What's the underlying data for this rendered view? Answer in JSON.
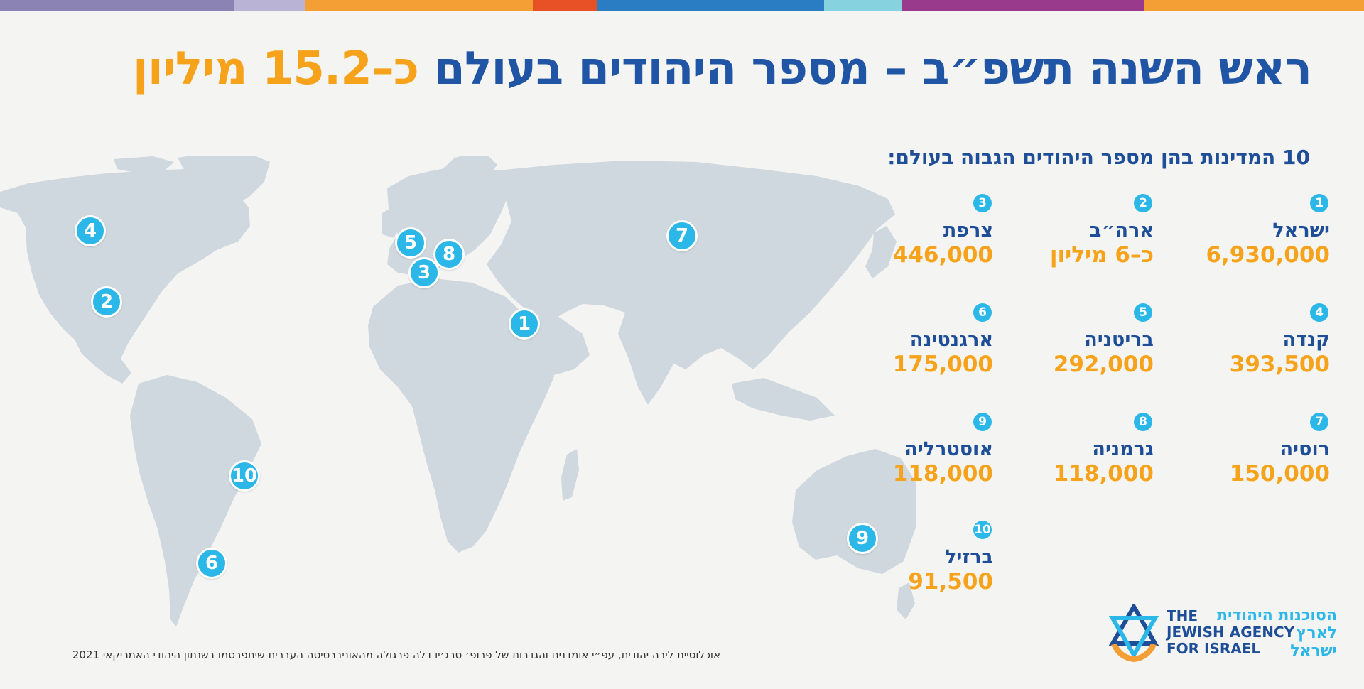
{
  "title": {
    "main": "ראש השנה תשפ״ב – מספר היהודים בעולם",
    "highlight": "כ–15.2 מיליון"
  },
  "subtitle": "10 המדינות בהן מספר היהודים הגבוה בעולם:",
  "colors": {
    "title_blue": "#1f55a4",
    "accent_orange": "#f6a31b",
    "pin_cyan": "#2bb7e8",
    "map_gray": "#cfd7df",
    "background": "#f4f4f2"
  },
  "top_bar_colors": [
    "#8b83b4",
    "#b9b4d6",
    "#f39f35",
    "#e85126",
    "#2a7dc2",
    "#86d2de",
    "#9a3a8c",
    "#f39f35"
  ],
  "countries": [
    {
      "rank": "1",
      "name": "ישראל",
      "population": "6,930,000"
    },
    {
      "rank": "2",
      "name": "ארה״ב",
      "population": "כ–6 מיליון"
    },
    {
      "rank": "3",
      "name": "צרפת",
      "population": "446,000"
    },
    {
      "rank": "4",
      "name": "קנדה",
      "population": "393,500"
    },
    {
      "rank": "5",
      "name": "בריטניה",
      "population": "292,000"
    },
    {
      "rank": "6",
      "name": "ארגנטינה",
      "population": "175,000"
    },
    {
      "rank": "7",
      "name": "רוסיה",
      "population": "150,000"
    },
    {
      "rank": "8",
      "name": "גרמניה",
      "population": "118,000"
    },
    {
      "rank": "9",
      "name": "אוסטרליה",
      "population": "118,000"
    },
    {
      "rank": "10",
      "name": "ברזיל",
      "population": "91,500"
    }
  ],
  "map_pins": [
    "4",
    "2",
    "5",
    "8",
    "3",
    "1",
    "7",
    "10",
    "6",
    "9"
  ],
  "footnote": "אוכלוסיית ליבה יהודית, עפ״י אומדנים והגדרות של פרופ׳ סרג׳יו דלה פרגולה מהאוניברסיטה העברית שיתפרסמו בשנתון היהודי האמריקאי 2021",
  "logo": {
    "hebrew_lines": [
      "הסוכנות היהודית",
      "לארץ",
      "ישראל"
    ],
    "english_lines": [
      "THE",
      "JEWISH AGENCY",
      "FOR ISRAEL"
    ],
    "icon": "star-of-david-hands-icon"
  }
}
